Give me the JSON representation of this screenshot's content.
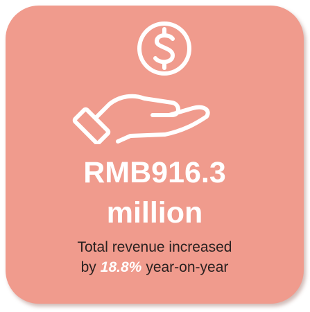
{
  "card": {
    "amount": "RMB916.3",
    "unit": "million",
    "description": {
      "line1": "Total revenue increased",
      "prefix": "by",
      "highlight": "18.8%",
      "suffix": "year-on-year"
    }
  }
}
